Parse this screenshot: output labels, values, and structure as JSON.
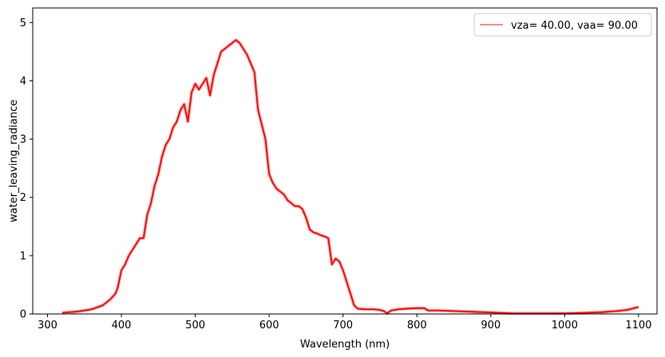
{
  "chart_data": {
    "type": "line",
    "xlabel": "Wavelength (nm)",
    "ylabel": "water_leaving_radiance",
    "xlim": [
      280,
      1125
    ],
    "ylim": [
      0,
      5.25
    ],
    "x_ticks": [
      300,
      400,
      500,
      600,
      700,
      800,
      900,
      1000,
      1100
    ],
    "y_ticks": [
      0,
      1,
      2,
      3,
      4,
      5
    ],
    "grid": false,
    "legend_position": "top-right",
    "series": [
      {
        "name": "vza= 40.00, vaa= 90.00",
        "color": "#ff0000",
        "points": [
          [
            320,
            0.02
          ],
          [
            340,
            0.04
          ],
          [
            360,
            0.08
          ],
          [
            375,
            0.15
          ],
          [
            385,
            0.25
          ],
          [
            392,
            0.35
          ],
          [
            395,
            0.45
          ],
          [
            400,
            0.75
          ],
          [
            405,
            0.85
          ],
          [
            410,
            1.0
          ],
          [
            415,
            1.1
          ],
          [
            420,
            1.2
          ],
          [
            425,
            1.3
          ],
          [
            430,
            1.3
          ],
          [
            435,
            1.7
          ],
          [
            440,
            1.9
          ],
          [
            445,
            2.2
          ],
          [
            450,
            2.4
          ],
          [
            455,
            2.7
          ],
          [
            460,
            2.9
          ],
          [
            465,
            3.0
          ],
          [
            470,
            3.2
          ],
          [
            475,
            3.3
          ],
          [
            480,
            3.5
          ],
          [
            485,
            3.6
          ],
          [
            490,
            3.3
          ],
          [
            495,
            3.8
          ],
          [
            500,
            3.95
          ],
          [
            505,
            3.85
          ],
          [
            510,
            3.95
          ],
          [
            515,
            4.05
          ],
          [
            520,
            3.75
          ],
          [
            525,
            4.1
          ],
          [
            530,
            4.3
          ],
          [
            535,
            4.5
          ],
          [
            540,
            4.55
          ],
          [
            545,
            4.6
          ],
          [
            550,
            4.65
          ],
          [
            555,
            4.7
          ],
          [
            560,
            4.65
          ],
          [
            565,
            4.55
          ],
          [
            570,
            4.45
          ],
          [
            575,
            4.3
          ],
          [
            580,
            4.15
          ],
          [
            585,
            3.5
          ],
          [
            590,
            3.25
          ],
          [
            595,
            3.0
          ],
          [
            600,
            2.4
          ],
          [
            605,
            2.25
          ],
          [
            610,
            2.15
          ],
          [
            615,
            2.1
          ],
          [
            620,
            2.05
          ],
          [
            625,
            1.95
          ],
          [
            630,
            1.9
          ],
          [
            635,
            1.85
          ],
          [
            640,
            1.85
          ],
          [
            645,
            1.8
          ],
          [
            650,
            1.65
          ],
          [
            655,
            1.45
          ],
          [
            660,
            1.4
          ],
          [
            665,
            1.38
          ],
          [
            670,
            1.35
          ],
          [
            675,
            1.33
          ],
          [
            680,
            1.3
          ],
          [
            685,
            0.85
          ],
          [
            690,
            0.95
          ],
          [
            695,
            0.9
          ],
          [
            700,
            0.75
          ],
          [
            705,
            0.55
          ],
          [
            710,
            0.35
          ],
          [
            715,
            0.15
          ],
          [
            720,
            0.09
          ],
          [
            730,
            0.08
          ],
          [
            740,
            0.08
          ],
          [
            750,
            0.07
          ],
          [
            755,
            0.05
          ],
          [
            760,
            0.01
          ],
          [
            765,
            0.06
          ],
          [
            775,
            0.08
          ],
          [
            785,
            0.09
          ],
          [
            800,
            0.1
          ],
          [
            810,
            0.1
          ],
          [
            815,
            0.06
          ],
          [
            830,
            0.06
          ],
          [
            850,
            0.05
          ],
          [
            870,
            0.04
          ],
          [
            890,
            0.03
          ],
          [
            910,
            0.02
          ],
          [
            930,
            0.01
          ],
          [
            960,
            0.01
          ],
          [
            1000,
            0.01
          ],
          [
            1030,
            0.02
          ],
          [
            1050,
            0.03
          ],
          [
            1070,
            0.05
          ],
          [
            1085,
            0.07
          ],
          [
            1100,
            0.12
          ]
        ]
      }
    ]
  }
}
